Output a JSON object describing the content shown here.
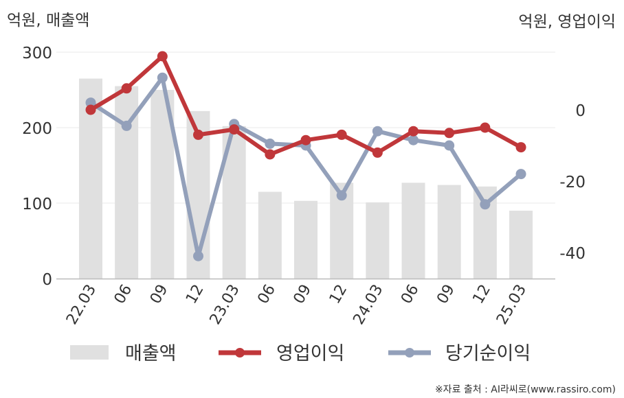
{
  "chart_data": {
    "type": "bar",
    "categories": [
      "22.03",
      "06",
      "09",
      "12",
      "23.03",
      "06",
      "09",
      "12",
      "24.03",
      "06",
      "09",
      "12",
      "25.03"
    ],
    "left_axis_unit": "억원, 매출액",
    "right_axis_unit": "억원, 영업이익",
    "left_ylim": [
      0,
      300
    ],
    "left_ticks": [
      0,
      100,
      200,
      300
    ],
    "right_ylim": [
      -47,
      16
    ],
    "right_ticks": [
      0,
      -20,
      -40
    ],
    "grid": true,
    "legend_position": "bottom",
    "series": [
      {
        "name": "매출액",
        "type": "bar",
        "axis": "left",
        "color": "#e0e0e0",
        "values": [
          265,
          255,
          250,
          222,
          202,
          115,
          103,
          127,
          101,
          127,
          124,
          122,
          90
        ]
      },
      {
        "name": "영업이익",
        "type": "line",
        "axis": "right",
        "color": "#c0373a",
        "values": [
          0,
          6,
          15,
          -7,
          -5.5,
          -12.5,
          -8.5,
          -7,
          -12,
          -6,
          -6.5,
          -5,
          -10.5
        ]
      },
      {
        "name": "당기순이익",
        "type": "line",
        "axis": "right",
        "color": "#93a0ba",
        "values": [
          2,
          -4.5,
          9,
          -41,
          -4,
          -9.5,
          -10,
          -24,
          -6,
          -8.5,
          -10,
          -26.5,
          -18
        ]
      }
    ],
    "source": "※자료 출처 : AI라씨로(www.rassiro.com)"
  }
}
